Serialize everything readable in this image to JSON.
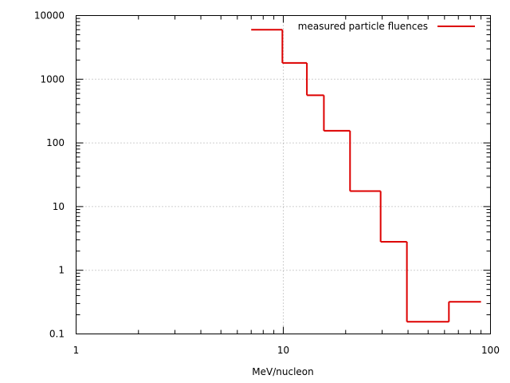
{
  "chart_data": {
    "type": "line",
    "xlabel": "MeV/nucleon",
    "ylabel": "",
    "xscale": "log",
    "yscale": "log",
    "xlim": [
      1,
      100
    ],
    "ylim": [
      0.1,
      10000
    ],
    "grid": true,
    "legend_position": "top-right",
    "x_ticks": [
      "1",
      "10",
      "100"
    ],
    "y_ticks": [
      "0.1",
      "1",
      "10",
      "100",
      "1000",
      "10000"
    ],
    "series": [
      {
        "name": "measured particle fluences",
        "color": "#dd0000",
        "style": "steps",
        "bins": [
          {
            "x_low": 7,
            "x_high": 9.9,
            "y": 6000
          },
          {
            "x_low": 9.9,
            "x_high": 13,
            "y": 1800
          },
          {
            "x_low": 13,
            "x_high": 15.7,
            "y": 560
          },
          {
            "x_low": 15.7,
            "x_high": 21,
            "y": 155
          },
          {
            "x_low": 21,
            "x_high": 29.5,
            "y": 17.5
          },
          {
            "x_low": 29.5,
            "x_high": 39.5,
            "y": 2.8
          },
          {
            "x_low": 39.5,
            "x_high": 63,
            "y": 0.155
          },
          {
            "x_low": 63,
            "x_high": 90,
            "y": 0.32
          }
        ]
      }
    ]
  }
}
